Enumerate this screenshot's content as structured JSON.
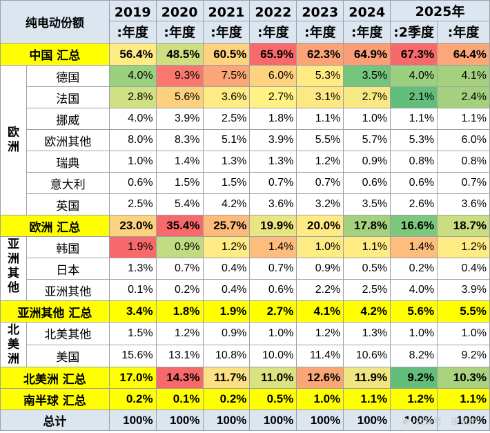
{
  "header": {
    "title": "纯电动份额",
    "years": [
      "2019",
      "2020",
      "2021",
      "2022",
      "2023",
      "2024",
      "2025年"
    ],
    "periods": [
      ":年度",
      ":年度",
      ":年度",
      ":年度",
      ":年度",
      ":年度",
      ":2季度",
      ":年度"
    ]
  },
  "regions": {
    "europe": "欧洲",
    "asia_other": "亚洲其他",
    "north_america": "北美洲"
  },
  "rows": {
    "china_total": {
      "label": "中国 汇总",
      "values": [
        "56.4%",
        "48.5%",
        "60.5%",
        "65.9%",
        "62.3%",
        "64.9%",
        "67.3%",
        "64.4%"
      ]
    },
    "germany": {
      "label": "德国",
      "values": [
        "4.0%",
        "9.3%",
        "7.5%",
        "6.0%",
        "5.3%",
        "3.5%",
        "4.0%",
        "4.1%"
      ]
    },
    "france": {
      "label": "法国",
      "values": [
        "2.8%",
        "5.6%",
        "3.6%",
        "2.7%",
        "3.1%",
        "2.7%",
        "2.1%",
        "2.4%"
      ]
    },
    "norway": {
      "label": "挪威",
      "values": [
        "4.0%",
        "3.9%",
        "2.5%",
        "1.8%",
        "1.1%",
        "1.0%",
        "1.1%",
        "1.1%"
      ]
    },
    "europe_other": {
      "label": "欧洲其他",
      "values": [
        "8.0%",
        "8.3%",
        "5.1%",
        "3.9%",
        "5.5%",
        "5.7%",
        "5.3%",
        "6.0%"
      ]
    },
    "sweden": {
      "label": "瑞典",
      "values": [
        "1.0%",
        "1.4%",
        "1.3%",
        "1.3%",
        "1.2%",
        "0.9%",
        "0.8%",
        "0.8%"
      ]
    },
    "italy": {
      "label": "意大利",
      "values": [
        "0.6%",
        "1.5%",
        "1.5%",
        "0.7%",
        "0.7%",
        "0.6%",
        "0.6%",
        "0.7%"
      ]
    },
    "uk": {
      "label": "英国",
      "values": [
        "2.5%",
        "5.4%",
        "4.2%",
        "3.6%",
        "3.2%",
        "3.5%",
        "2.6%",
        "3.6%"
      ]
    },
    "europe_total": {
      "label": "欧洲 汇总",
      "values": [
        "23.0%",
        "35.4%",
        "25.7%",
        "19.9%",
        "20.0%",
        "17.8%",
        "16.6%",
        "18.7%"
      ]
    },
    "korea": {
      "label": "韩国",
      "values": [
        "1.9%",
        "0.9%",
        "1.2%",
        "1.4%",
        "1.0%",
        "1.1%",
        "1.4%",
        "1.2%"
      ]
    },
    "japan": {
      "label": "日本",
      "values": [
        "1.3%",
        "0.7%",
        "0.4%",
        "0.7%",
        "0.9%",
        "0.5%",
        "0.2%",
        "0.4%"
      ]
    },
    "asia_other": {
      "label": "亚洲其他",
      "values": [
        "0.1%",
        "0.2%",
        "0.4%",
        "0.6%",
        "2.2%",
        "2.5%",
        "4.0%",
        "3.9%"
      ]
    },
    "asia_other_total": {
      "label": "亚洲其他 汇总",
      "values": [
        "3.4%",
        "1.8%",
        "1.9%",
        "2.7%",
        "4.1%",
        "4.2%",
        "5.6%",
        "5.5%"
      ]
    },
    "na_other": {
      "label": "北美其他",
      "values": [
        "1.5%",
        "1.2%",
        "0.9%",
        "1.0%",
        "1.2%",
        "1.3%",
        "1.0%",
        "1.0%"
      ]
    },
    "usa": {
      "label": "美国",
      "values": [
        "15.6%",
        "13.1%",
        "10.8%",
        "10.0%",
        "11.4%",
        "10.6%",
        "8.2%",
        "9.2%"
      ]
    },
    "na_total": {
      "label": "北美洲 汇总",
      "values": [
        "17.0%",
        "14.3%",
        "11.7%",
        "11.0%",
        "12.6%",
        "11.9%",
        "9.2%",
        "10.3%"
      ]
    },
    "sh_total": {
      "label": "南半球 汇总",
      "values": [
        "0.2%",
        "0.1%",
        "0.2%",
        "0.5%",
        "1.0%",
        "1.1%",
        "1.2%",
        "1.1%"
      ]
    },
    "grand_total": {
      "label": "总计",
      "values": [
        "100%",
        "100%",
        "100%",
        "100%",
        "100%",
        "100%",
        "100%",
        "100%"
      ]
    }
  },
  "colors": {
    "china_total": [
      "#ffeb84",
      "#cfdf7f",
      "#fed280",
      "#f8696b",
      "#fca377",
      "#fb9d75",
      "#f8696b",
      "#fca77a"
    ],
    "germany": [
      "#9bd07f",
      "#f8786e",
      "#fba677",
      "#fed280",
      "#ffeb84",
      "#75c47d",
      "#9bd07f",
      "#a5d17f"
    ],
    "france": [
      "#d0e183",
      "#fdd07f",
      "#ffeb84",
      "#fff184",
      "#fee883",
      "#f7e883",
      "#63be7b",
      "#a5d17f"
    ],
    "europe_total": [
      "#fbd37f",
      "#f8696b",
      "#fcbb7b",
      "#eae583",
      "#ffea84",
      "#a5d17f",
      "#7cc87d",
      "#cbdd81"
    ],
    "korea": [
      "#f8696b",
      "#c1db81",
      "#ffeb84",
      "#fdbd7c",
      "#ffeb84",
      "#ffeb84",
      "#fdbd7c",
      "#ffeb84"
    ],
    "asia_other_total": [
      "#ffff00",
      "#ffff00",
      "#ffff00",
      "#ffff00",
      "#ffff00",
      "#ffff00",
      "#ffff00",
      "#ffff00"
    ],
    "na_total": [
      "#ffff00",
      "#f8696b",
      "#fde083",
      "#dbe282",
      "#fba677",
      "#f1e583",
      "#63be7b",
      "#aad380"
    ],
    "sh_total": [
      "#ffff00",
      "#ffff00",
      "#ffff00",
      "#ffff00",
      "#ffff00",
      "#ffff00",
      "#ffff00",
      "#ffff00"
    ]
  },
  "watermark": "公众号 · 崔东树"
}
